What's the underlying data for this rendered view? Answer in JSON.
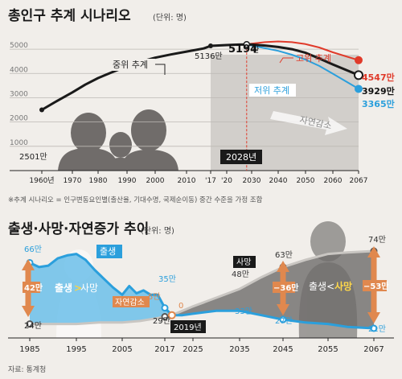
{
  "chart_data": [
    {
      "type": "line",
      "title": "총인구 추계 시나리오",
      "unit": "(단위: 명)",
      "x_ticks": [
        "1960년",
        "1970",
        "1980",
        "1990",
        "2000",
        "2010",
        "'17",
        "'20",
        "2030",
        "2040",
        "2050",
        "2060",
        "2067"
      ],
      "y_ticks": [
        "5000",
        "4000",
        "3000",
        "2000",
        "1000"
      ],
      "ylim": [
        0,
        5600
      ],
      "series": [
        {
          "name": "중위 추계",
          "color": "#1a1a1a",
          "x": [
            1960,
            1965,
            1970,
            1975,
            1980,
            1985,
            1990,
            1995,
            2000,
            2005,
            2010,
            2015,
            2017,
            2020,
            2025,
            2028,
            2030,
            2035,
            2040,
            2045,
            2050,
            2055,
            2060,
            2067
          ],
          "values": [
            2501,
            2870,
            3220,
            3540,
            3810,
            4060,
            4290,
            4490,
            4650,
            4780,
            4900,
            5030,
            5136,
            5170,
            5190,
            5194,
            5190,
            5150,
            5090,
            5000,
            4850,
            4620,
            4370,
            3929
          ]
        },
        {
          "name": "고위 추계",
          "color": "#e03a2a",
          "x": [
            2028,
            2030,
            2035,
            2040,
            2045,
            2050,
            2055,
            2060,
            2067
          ],
          "values": [
            5194,
            5230,
            5290,
            5320,
            5290,
            5210,
            5070,
            4870,
            4547
          ]
        },
        {
          "name": "저위 추계",
          "color": "#2b9fdc",
          "x": [
            2028,
            2030,
            2035,
            2040,
            2045,
            2050,
            2055,
            2060,
            2067
          ],
          "values": [
            5194,
            5150,
            5040,
            4930,
            4770,
            4570,
            4310,
            3990,
            3365
          ]
        }
      ],
      "labels": {
        "start": "2501만",
        "y2017": "5136만",
        "peak": "5194만",
        "peak_num": "5194",
        "peak_unit": "만",
        "high_end": "4547만",
        "mid_end": "3929만",
        "low_end": "3365만",
        "mid_name": "중위 추계",
        "high_name": "고위 추계",
        "low_name": "저위 추계",
        "decline": "자연감소",
        "peak_year": "2028년"
      },
      "footnote": "※추계 시나리오 = 인구변동요인별(출산율, 기대수명, 국제순이동) 중간 수준을 가정 조합"
    },
    {
      "type": "line",
      "title": "출생·사망·자연증가 추이",
      "unit": "(단위: 명)",
      "x_ticks": [
        "1985",
        "1995",
        "2005",
        "2017",
        "2025",
        "2035",
        "2045",
        "2055",
        "2067"
      ],
      "series": [
        {
          "name": "출생",
          "color": "#2b9fdc",
          "x": [
            1985,
            1987,
            1989,
            1991,
            1993,
            1995,
            1997,
            1999,
            2001,
            2003,
            2005,
            2007,
            2009,
            2011,
            2013,
            2015,
            2017,
            2019,
            2022,
            2025,
            2030,
            2035,
            2040,
            2045,
            2050,
            2055,
            2060,
            2067
          ],
          "values": [
            66,
            63,
            64,
            69,
            71,
            72,
            68,
            61,
            55,
            49,
            44,
            50,
            45,
            47,
            44,
            44,
            35,
            30,
            30,
            31,
            33,
            33,
            30,
            27,
            25,
            24,
            22,
            21
          ]
        },
        {
          "name": "사망",
          "color": "#333333",
          "x": [
            1985,
            1990,
            1995,
            2000,
            2005,
            2010,
            2015,
            2017,
            2019,
            2022,
            2025,
            2030,
            2035,
            2040,
            2045,
            2050,
            2055,
            2060,
            2067
          ],
          "values": [
            24,
            24,
            24,
            25,
            25,
            26,
            28,
            29,
            30,
            33,
            36,
            42,
            48,
            56,
            63,
            68,
            72,
            73,
            74
          ]
        }
      ],
      "labels": {
        "b_start": "66만",
        "d_start": "24만",
        "b2017": "35만",
        "d2017": "29만",
        "nat_2017": "5만",
        "zero": "0",
        "death_2035": "48만",
        "death_2045": "63만",
        "birth_2045": "27만",
        "birth_2035": "33만",
        "d_end": "74만",
        "b_end": "21만",
        "gap_start": "42만",
        "gap_2045": "−36만",
        "gap_end": "−53만",
        "birth_tag": "출생",
        "death_tag": "사망",
        "birth_gt": "출생",
        "birth_gt_sym": ">",
        "birth_gt_tail": "사망",
        "death_gt_head": "출생<",
        "death_gt": "사망",
        "natural_dec": "자연감소",
        "cross_year": "2019년"
      }
    }
  ],
  "source": "자료: 통계청"
}
